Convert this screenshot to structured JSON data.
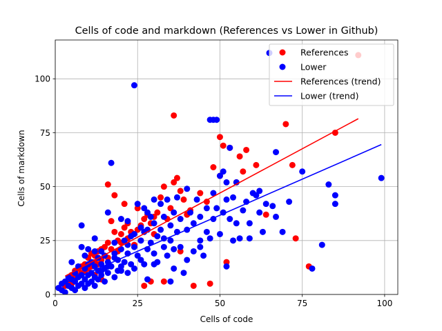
{
  "chart_data": {
    "type": "scatter",
    "title": "Cells of code and markdown (References vs Lower in Github)",
    "xlabel": "Cells of code",
    "ylabel": "Cells of markdown",
    "xlim": [
      0,
      104
    ],
    "ylim": [
      0,
      118
    ],
    "xticks": [
      0,
      25,
      50,
      75,
      100
    ],
    "yticks": [
      0,
      25,
      50,
      75,
      100
    ],
    "grid": true,
    "legend": "top-right",
    "series": [
      {
        "name": "References",
        "kind": "scatter",
        "color": "#ff0000",
        "points": [
          [
            3,
            4
          ],
          [
            4,
            6
          ],
          [
            5,
            5
          ],
          [
            5,
            9
          ],
          [
            6,
            8
          ],
          [
            6,
            11
          ],
          [
            7,
            9
          ],
          [
            7,
            12
          ],
          [
            8,
            10
          ],
          [
            8,
            13
          ],
          [
            9,
            11
          ],
          [
            9,
            14
          ],
          [
            10,
            12
          ],
          [
            10,
            17
          ],
          [
            11,
            13
          ],
          [
            11,
            19
          ],
          [
            12,
            15
          ],
          [
            12,
            18
          ],
          [
            13,
            14
          ],
          [
            13,
            20
          ],
          [
            14,
            16
          ],
          [
            14,
            21
          ],
          [
            15,
            18
          ],
          [
            15,
            22
          ],
          [
            16,
            17
          ],
          [
            16,
            24
          ],
          [
            17,
            21
          ],
          [
            17,
            34
          ],
          [
            18,
            46
          ],
          [
            18,
            29
          ],
          [
            19,
            25
          ],
          [
            19,
            20
          ],
          [
            20,
            28
          ],
          [
            20,
            24
          ],
          [
            21,
            31
          ],
          [
            21,
            42
          ],
          [
            22,
            26
          ],
          [
            22,
            33
          ],
          [
            23,
            29
          ],
          [
            24,
            23
          ],
          [
            25,
            30
          ],
          [
            26,
            32
          ],
          [
            27,
            35
          ],
          [
            27,
            4
          ],
          [
            28,
            37
          ],
          [
            29,
            33
          ],
          [
            30,
            36
          ],
          [
            31,
            38
          ],
          [
            32,
            45
          ],
          [
            33,
            50
          ],
          [
            33,
            6
          ],
          [
            34,
            35
          ],
          [
            35,
            40
          ],
          [
            36,
            83
          ],
          [
            36,
            52
          ],
          [
            37,
            54
          ],
          [
            38,
            48
          ],
          [
            39,
            44
          ],
          [
            40,
            37
          ],
          [
            41,
            39
          ],
          [
            42,
            4
          ],
          [
            44,
            47
          ],
          [
            46,
            43
          ],
          [
            47,
            5
          ],
          [
            48,
            59
          ],
          [
            50,
            73
          ],
          [
            50,
            55
          ],
          [
            51,
            69
          ],
          [
            52,
            15
          ],
          [
            53,
            68
          ],
          [
            55,
            52
          ],
          [
            56,
            64
          ],
          [
            57,
            57
          ],
          [
            58,
            67
          ],
          [
            61,
            60
          ],
          [
            64,
            37
          ],
          [
            70,
            79
          ],
          [
            72,
            60
          ],
          [
            73,
            26
          ],
          [
            77,
            13
          ],
          [
            85,
            75
          ],
          [
            92,
            111
          ],
          [
            16,
            51
          ],
          [
            25,
            40
          ],
          [
            30,
            28
          ],
          [
            38,
            20
          ],
          [
            29,
            6
          ],
          [
            12,
            9
          ],
          [
            14,
            7
          ]
        ]
      },
      {
        "name": "Lower",
        "kind": "scatter",
        "color": "#0000ff",
        "points": [
          [
            1,
            3
          ],
          [
            2,
            2
          ],
          [
            2,
            5
          ],
          [
            3,
            6
          ],
          [
            3,
            1
          ],
          [
            4,
            4
          ],
          [
            4,
            8
          ],
          [
            5,
            3
          ],
          [
            5,
            7
          ],
          [
            5,
            15
          ],
          [
            6,
            2
          ],
          [
            6,
            6
          ],
          [
            6,
            10
          ],
          [
            7,
            4
          ],
          [
            7,
            8
          ],
          [
            7,
            13
          ],
          [
            8,
            5
          ],
          [
            8,
            9
          ],
          [
            8,
            32
          ],
          [
            8,
            22
          ],
          [
            9,
            3
          ],
          [
            9,
            7
          ],
          [
            9,
            12
          ],
          [
            9,
            18
          ],
          [
            10,
            5
          ],
          [
            10,
            9
          ],
          [
            10,
            14
          ],
          [
            10,
            21
          ],
          [
            11,
            6
          ],
          [
            11,
            10
          ],
          [
            11,
            15
          ],
          [
            12,
            4
          ],
          [
            12,
            8
          ],
          [
            12,
            13
          ],
          [
            12,
            26
          ],
          [
            13,
            7
          ],
          [
            13,
            11
          ],
          [
            13,
            17
          ],
          [
            14,
            9
          ],
          [
            14,
            14
          ],
          [
            14,
            20
          ],
          [
            15,
            6
          ],
          [
            15,
            12
          ],
          [
            15,
            18
          ],
          [
            16,
            10
          ],
          [
            16,
            15
          ],
          [
            16,
            38
          ],
          [
            17,
            61
          ],
          [
            17,
            13
          ],
          [
            18,
            8
          ],
          [
            18,
            17
          ],
          [
            18,
            24
          ],
          [
            19,
            11
          ],
          [
            19,
            16
          ],
          [
            20,
            13
          ],
          [
            20,
            21
          ],
          [
            20,
            35
          ],
          [
            21,
            15
          ],
          [
            21,
            25
          ],
          [
            22,
            10
          ],
          [
            22,
            19
          ],
          [
            22,
            34
          ],
          [
            23,
            14
          ],
          [
            23,
            27
          ],
          [
            24,
            97
          ],
          [
            24,
            22
          ],
          [
            24,
            12
          ],
          [
            25,
            18
          ],
          [
            25,
            42
          ],
          [
            26,
            16
          ],
          [
            26,
            31
          ],
          [
            27,
            14
          ],
          [
            27,
            29
          ],
          [
            27,
            40
          ],
          [
            28,
            21
          ],
          [
            28,
            38
          ],
          [
            28,
            7
          ],
          [
            29,
            24
          ],
          [
            29,
            36
          ],
          [
            30,
            19
          ],
          [
            30,
            33
          ],
          [
            30,
            44
          ],
          [
            31,
            27
          ],
          [
            31,
            15
          ],
          [
            32,
            30
          ],
          [
            32,
            42
          ],
          [
            33,
            22
          ],
          [
            33,
            36
          ],
          [
            34,
            18
          ],
          [
            34,
            44
          ],
          [
            35,
            25
          ],
          [
            35,
            6
          ],
          [
            35,
            32
          ],
          [
            36,
            38
          ],
          [
            36,
            12
          ],
          [
            37,
            29
          ],
          [
            37,
            45
          ],
          [
            38,
            22
          ],
          [
            38,
            35
          ],
          [
            39,
            10
          ],
          [
            40,
            49
          ],
          [
            40,
            30
          ],
          [
            41,
            38
          ],
          [
            42,
            33
          ],
          [
            42,
            20
          ],
          [
            43,
            44
          ],
          [
            44,
            25
          ],
          [
            44,
            36
          ],
          [
            45,
            18
          ],
          [
            46,
            29
          ],
          [
            46,
            40
          ],
          [
            47,
            81
          ],
          [
            47,
            26
          ],
          [
            48,
            81
          ],
          [
            48,
            35
          ],
          [
            49,
            81
          ],
          [
            49,
            40
          ],
          [
            50,
            55
          ],
          [
            50,
            28
          ],
          [
            51,
            57
          ],
          [
            51,
            38
          ],
          [
            52,
            44
          ],
          [
            52,
            13
          ],
          [
            53,
            68
          ],
          [
            53,
            35
          ],
          [
            54,
            25
          ],
          [
            54,
            45
          ],
          [
            55,
            52
          ],
          [
            55,
            33
          ],
          [
            56,
            26
          ],
          [
            57,
            39
          ],
          [
            58,
            43
          ],
          [
            59,
            33
          ],
          [
            59,
            26
          ],
          [
            60,
            47
          ],
          [
            61,
            46
          ],
          [
            62,
            48
          ],
          [
            62,
            38
          ],
          [
            63,
            29
          ],
          [
            64,
            42
          ],
          [
            65,
            112
          ],
          [
            66,
            41
          ],
          [
            67,
            36
          ],
          [
            67,
            66
          ],
          [
            69,
            29
          ],
          [
            71,
            43
          ],
          [
            75,
            57
          ],
          [
            78,
            12
          ],
          [
            81,
            23
          ],
          [
            83,
            51
          ],
          [
            85,
            46
          ],
          [
            85,
            42
          ],
          [
            99,
            54
          ],
          [
            12,
            20
          ],
          [
            14,
            11
          ],
          [
            16,
            13
          ],
          [
            18,
            19
          ],
          [
            20,
            11
          ],
          [
            22,
            23
          ],
          [
            24,
            28
          ],
          [
            26,
            25
          ],
          [
            28,
            30
          ],
          [
            30,
            14
          ],
          [
            33,
            26
          ],
          [
            36,
            21
          ],
          [
            40,
            16
          ],
          [
            44,
            22
          ],
          [
            48,
            47
          ],
          [
            52,
            52
          ]
        ]
      },
      {
        "name": "References (trend)",
        "kind": "line",
        "color": "#ff0000",
        "points": [
          [
            3,
            8.5
          ],
          [
            92,
            81.5
          ]
        ]
      },
      {
        "name": "Lower (trend)",
        "kind": "line",
        "color": "#0000ff",
        "points": [
          [
            1,
            4
          ],
          [
            99,
            69.5
          ]
        ]
      }
    ]
  }
}
